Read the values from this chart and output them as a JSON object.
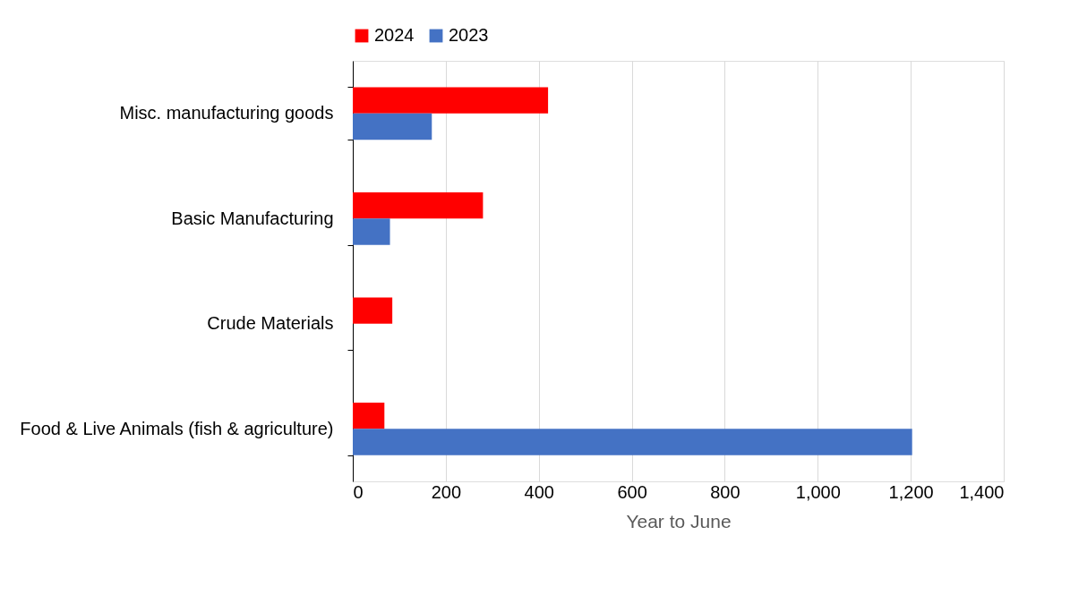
{
  "chart_data": {
    "type": "bar",
    "orientation": "horizontal",
    "xlabel": "Year to June",
    "categories": [
      "Misc. manufacturing goods",
      "Basic Manufacturing",
      "Crude Materials",
      "Food & Live Animals (fish & agriculture)"
    ],
    "series": [
      {
        "name": "2024",
        "color": "#ff0000",
        "values": [
          420,
          280,
          85,
          68
        ]
      },
      {
        "name": "2023",
        "color": "#4472c4",
        "values": [
          170,
          80,
          null,
          1203
        ]
      }
    ],
    "xlim": [
      0,
      1400
    ],
    "xticks": [
      0,
      200,
      400,
      600,
      800,
      {
        "value": 1000,
        "label": "1,000"
      },
      {
        "value": 1200,
        "label": "1,200"
      },
      {
        "value": 1400,
        "label": "1,400"
      }
    ],
    "grid": "x",
    "legend": "top"
  }
}
